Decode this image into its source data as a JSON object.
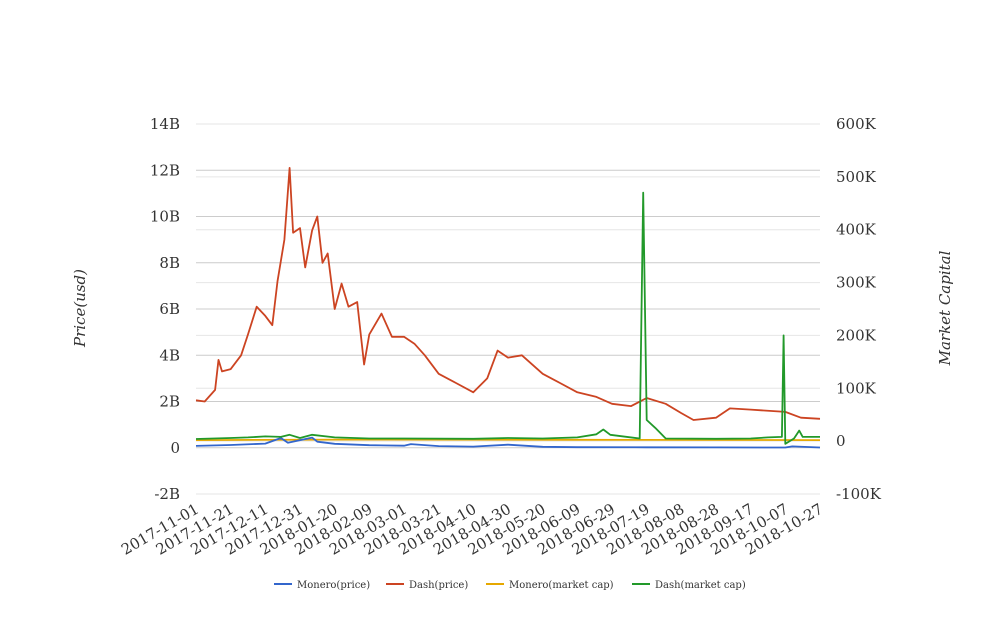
{
  "chart_data": {
    "type": "line",
    "ylabel_left": "Price(usd)",
    "ylabel_right": "Market Capital",
    "left_axis": {
      "ticks": [
        -2000000000,
        0,
        2000000000,
        4000000000,
        6000000000,
        8000000000,
        10000000000,
        12000000000,
        14000000000
      ],
      "tick_labels": [
        "-2B",
        "0",
        "2B",
        "4B",
        "6B",
        "8B",
        "10B",
        "12B",
        "14B"
      ],
      "ylim": [
        -2000000000,
        14000000000
      ]
    },
    "right_axis": {
      "ticks": [
        -100000,
        0,
        100000,
        200000,
        300000,
        400000,
        500000,
        600000
      ],
      "tick_labels": [
        "-100K",
        "0",
        "100K",
        "200K",
        "300K",
        "400K",
        "500K",
        "600K"
      ],
      "ylim": [
        -100000,
        600000
      ]
    },
    "x_ticks": [
      "2017-11-01",
      "2017-11-21",
      "2017-12-11",
      "2017-12-31",
      "2018-01-20",
      "2018-02-09",
      "2018-03-01",
      "2018-03-21",
      "2018-04-10",
      "2018-04-30",
      "2018-05-20",
      "2018-06-09",
      "2018-06-29",
      "2018-07-19",
      "2018-08-08",
      "2018-08-28",
      "2018-09-17",
      "2018-10-07",
      "2018-10-27"
    ],
    "x_range": [
      "2017-11-01",
      "2018-10-27"
    ],
    "grid": true,
    "legend_position": "bottom-center",
    "series": [
      {
        "name": "Monero(price)",
        "axis": "left",
        "color": "#3366cc",
        "points": [
          [
            "2017-11-01",
            80000000
          ],
          [
            "2017-11-21",
            120000000
          ],
          [
            "2017-12-11",
            180000000
          ],
          [
            "2017-12-20",
            420000000
          ],
          [
            "2017-12-24",
            220000000
          ],
          [
            "2018-01-07",
            440000000
          ],
          [
            "2018-01-10",
            260000000
          ],
          [
            "2018-01-20",
            170000000
          ],
          [
            "2018-02-09",
            110000000
          ],
          [
            "2018-03-01",
            90000000
          ],
          [
            "2018-03-05",
            160000000
          ],
          [
            "2018-03-21",
            70000000
          ],
          [
            "2018-04-10",
            50000000
          ],
          [
            "2018-04-30",
            130000000
          ],
          [
            "2018-05-20",
            40000000
          ],
          [
            "2018-06-09",
            25000000
          ],
          [
            "2018-07-19",
            20000000
          ],
          [
            "2018-08-28",
            15000000
          ],
          [
            "2018-10-07",
            12000000
          ],
          [
            "2018-10-11",
            60000000
          ],
          [
            "2018-10-27",
            10000000
          ]
        ]
      },
      {
        "name": "Dash(price)",
        "axis": "left",
        "color": "#cc4422",
        "points": [
          [
            "2017-11-01",
            2050000000
          ],
          [
            "2017-11-06",
            2000000000
          ],
          [
            "2017-11-12",
            2500000000
          ],
          [
            "2017-11-14",
            3800000000
          ],
          [
            "2017-11-16",
            3300000000
          ],
          [
            "2017-11-21",
            3400000000
          ],
          [
            "2017-11-27",
            4000000000
          ],
          [
            "2017-12-01",
            4900000000
          ],
          [
            "2017-12-06",
            6100000000
          ],
          [
            "2017-12-11",
            5700000000
          ],
          [
            "2017-12-15",
            5300000000
          ],
          [
            "2017-12-18",
            7200000000
          ],
          [
            "2017-12-22",
            9000000000
          ],
          [
            "2017-12-25",
            12100000000
          ],
          [
            "2017-12-27",
            9300000000
          ],
          [
            "2017-12-31",
            9500000000
          ],
          [
            "2018-01-03",
            7800000000
          ],
          [
            "2018-01-07",
            9400000000
          ],
          [
            "2018-01-10",
            10000000000
          ],
          [
            "2018-01-13",
            8000000000
          ],
          [
            "2018-01-16",
            8400000000
          ],
          [
            "2018-01-20",
            6000000000
          ],
          [
            "2018-01-24",
            7100000000
          ],
          [
            "2018-01-28",
            6100000000
          ],
          [
            "2018-02-02",
            6300000000
          ],
          [
            "2018-02-06",
            3600000000
          ],
          [
            "2018-02-09",
            4900000000
          ],
          [
            "2018-02-16",
            5800000000
          ],
          [
            "2018-02-22",
            4800000000
          ],
          [
            "2018-03-01",
            4800000000
          ],
          [
            "2018-03-07",
            4500000000
          ],
          [
            "2018-03-13",
            4000000000
          ],
          [
            "2018-03-21",
            3200000000
          ],
          [
            "2018-03-31",
            2800000000
          ],
          [
            "2018-04-10",
            2400000000
          ],
          [
            "2018-04-18",
            3000000000
          ],
          [
            "2018-04-24",
            4200000000
          ],
          [
            "2018-04-30",
            3900000000
          ],
          [
            "2018-05-08",
            4000000000
          ],
          [
            "2018-05-20",
            3200000000
          ],
          [
            "2018-05-30",
            2800000000
          ],
          [
            "2018-06-09",
            2400000000
          ],
          [
            "2018-06-20",
            2200000000
          ],
          [
            "2018-06-29",
            1900000000
          ],
          [
            "2018-07-10",
            1800000000
          ],
          [
            "2018-07-19",
            2150000000
          ],
          [
            "2018-07-30",
            1900000000
          ],
          [
            "2018-08-08",
            1500000000
          ],
          [
            "2018-08-15",
            1200000000
          ],
          [
            "2018-08-28",
            1300000000
          ],
          [
            "2018-09-05",
            1700000000
          ],
          [
            "2018-09-17",
            1650000000
          ],
          [
            "2018-10-07",
            1550000000
          ],
          [
            "2018-10-16",
            1300000000
          ],
          [
            "2018-10-27",
            1250000000
          ]
        ]
      },
      {
        "name": "Monero(market cap)",
        "axis": "right",
        "color": "#e6a800",
        "points": [
          [
            "2017-11-01",
            2000
          ],
          [
            "2018-01-20",
            3000
          ],
          [
            "2018-06-09",
            2500
          ],
          [
            "2018-10-27",
            2000
          ]
        ]
      },
      {
        "name": "Dash(market cap)",
        "axis": "right",
        "color": "#22992a",
        "points": [
          [
            "2017-11-01",
            4000
          ],
          [
            "2017-11-11",
            5000
          ],
          [
            "2017-11-21",
            6000
          ],
          [
            "2017-12-01",
            7000
          ],
          [
            "2017-12-11",
            9000
          ],
          [
            "2017-12-20",
            8000
          ],
          [
            "2017-12-25",
            12000
          ],
          [
            "2017-12-31",
            6000
          ],
          [
            "2018-01-07",
            12000
          ],
          [
            "2018-01-20",
            7000
          ],
          [
            "2018-02-09",
            5000
          ],
          [
            "2018-03-01",
            5000
          ],
          [
            "2018-04-10",
            4500
          ],
          [
            "2018-04-30",
            6000
          ],
          [
            "2018-05-20",
            5000
          ],
          [
            "2018-06-09",
            7000
          ],
          [
            "2018-06-20",
            13000
          ],
          [
            "2018-06-24",
            22000
          ],
          [
            "2018-06-28",
            12000
          ],
          [
            "2018-07-15",
            5000
          ],
          [
            "2018-07-17",
            470000
          ],
          [
            "2018-07-19",
            40000
          ],
          [
            "2018-07-24",
            25000
          ],
          [
            "2018-07-30",
            5000
          ],
          [
            "2018-08-28",
            4500
          ],
          [
            "2018-09-17",
            5000
          ],
          [
            "2018-09-27",
            7000
          ],
          [
            "2018-10-05",
            8000
          ],
          [
            "2018-10-06",
            200000
          ],
          [
            "2018-10-07",
            -5000
          ],
          [
            "2018-10-12",
            5000
          ],
          [
            "2018-10-15",
            20000
          ],
          [
            "2018-10-17",
            8000
          ],
          [
            "2018-10-27",
            8000
          ]
        ]
      }
    ]
  }
}
